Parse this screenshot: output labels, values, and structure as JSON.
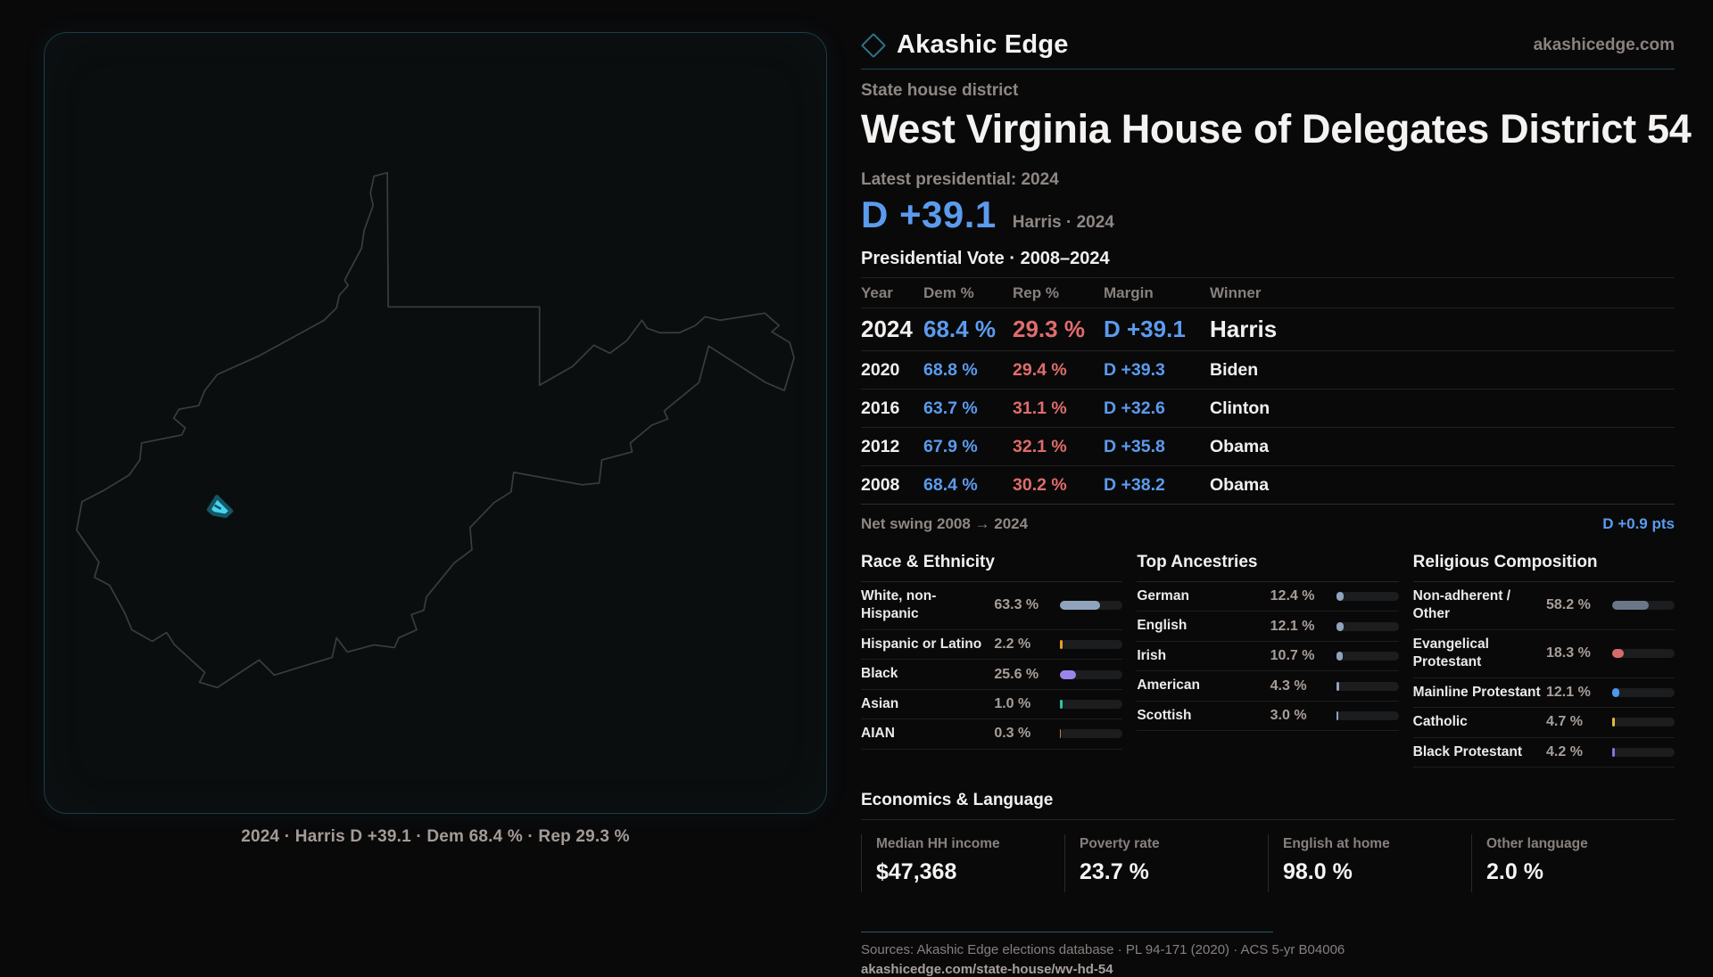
{
  "brand": {
    "name": "Akashic Edge",
    "domain": "akashicedge.com"
  },
  "header": {
    "kicker": "State house district",
    "title": "West Virginia House of Delegates District 54",
    "latest_label": "Latest presidential: 2024",
    "margin_big": "D +39.1",
    "margin_context": "Harris · 2024"
  },
  "map": {
    "caption": "2024 · Harris D +39.1 · Dem 68.4 % · Rep 29.3 %",
    "outline_color": "#3a3d3f",
    "district_fill": "#45d4f0",
    "district_stroke": "#135765"
  },
  "vote_table": {
    "title": "Presidential Vote · 2008–2024",
    "columns": [
      "Year",
      "Dem %",
      "Rep %",
      "Margin",
      "Winner"
    ],
    "rows": [
      {
        "year": "2024",
        "dem": "68.4 %",
        "rep": "29.3 %",
        "margin": "D +39.1",
        "winner": "Harris"
      },
      {
        "year": "2020",
        "dem": "68.8 %",
        "rep": "29.4 %",
        "margin": "D +39.3",
        "winner": "Biden"
      },
      {
        "year": "2016",
        "dem": "63.7 %",
        "rep": "31.1 %",
        "margin": "D +32.6",
        "winner": "Clinton"
      },
      {
        "year": "2012",
        "dem": "67.9 %",
        "rep": "32.1 %",
        "margin": "D +35.8",
        "winner": "Obama"
      },
      {
        "year": "2008",
        "dem": "68.4 %",
        "rep": "30.2 %",
        "margin": "D +38.2",
        "winner": "Obama"
      }
    ],
    "net_swing_label": "Net swing 2008 → 2024",
    "net_swing_value": "D +0.9 pts"
  },
  "demographics": [
    {
      "title": "Race & Ethnicity",
      "rows": [
        {
          "label": "White, non-Hispanic",
          "value": "63.3 %",
          "pct": 63.3,
          "color": "#8fa3bd"
        },
        {
          "label": "Hispanic or Latino",
          "value": "2.2 %",
          "pct": 2.2,
          "color": "#e5a02c"
        },
        {
          "label": "Black",
          "value": "25.6 %",
          "pct": 25.6,
          "color": "#9b85e8"
        },
        {
          "label": "Asian",
          "value": "1.0 %",
          "pct": 1.0,
          "color": "#2ec4a0"
        },
        {
          "label": "AIAN",
          "value": "0.3 %",
          "pct": 0.3,
          "color": "#c77d3a"
        }
      ]
    },
    {
      "title": "Top Ancestries",
      "rows": [
        {
          "label": "German",
          "value": "12.4 %",
          "pct": 12.4,
          "color": "#8fa3bd"
        },
        {
          "label": "English",
          "value": "12.1 %",
          "pct": 12.1,
          "color": "#8fa3bd"
        },
        {
          "label": "Irish",
          "value": "10.7 %",
          "pct": 10.7,
          "color": "#8fa3bd"
        },
        {
          "label": "American",
          "value": "4.3 %",
          "pct": 4.3,
          "color": "#8fa3bd"
        },
        {
          "label": "Scottish",
          "value": "3.0 %",
          "pct": 3.0,
          "color": "#8fa3bd"
        }
      ]
    },
    {
      "title": "Religious Composition",
      "rows": [
        {
          "label": "Non-adherent / Other",
          "value": "58.2 %",
          "pct": 58.2,
          "color": "#6b7689"
        },
        {
          "label": "Evangelical Protestant",
          "value": "18.3 %",
          "pct": 18.3,
          "color": "#d96a6a"
        },
        {
          "label": "Mainline Protestant",
          "value": "12.1 %",
          "pct": 12.1,
          "color": "#4f97e8"
        },
        {
          "label": "Catholic",
          "value": "4.7 %",
          "pct": 4.7,
          "color": "#e8b83a"
        },
        {
          "label": "Black Protestant",
          "value": "4.2 %",
          "pct": 4.2,
          "color": "#8f6fe0"
        }
      ]
    }
  ],
  "economics": {
    "title": "Economics & Language",
    "stats": [
      {
        "label": "Median HH income",
        "value": "$47,368"
      },
      {
        "label": "Poverty rate",
        "value": "23.7 %"
      },
      {
        "label": "English at home",
        "value": "98.0 %"
      },
      {
        "label": "Other language",
        "value": "2.0 %"
      }
    ]
  },
  "footer": {
    "sources": "Sources: Akashic Edge elections database · PL 94-171 (2020) · ACS 5-yr B04006",
    "slug": "akashicedge.com/state-house/wv-hd-54"
  }
}
